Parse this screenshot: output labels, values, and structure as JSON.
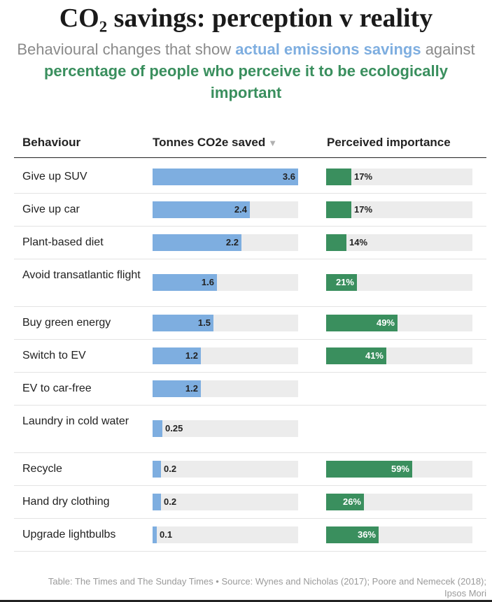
{
  "title": "CO₂ savings: perception v reality",
  "subtitle": {
    "part1": "Behavioural changes that show ",
    "highlight_blue": "actual emissions savings",
    "part2": " against",
    "highlight_green": "percentage of people who perceive it to be ecologically important"
  },
  "colors": {
    "blue": "#7eaee0",
    "green": "#3a8f5e",
    "track": "#ececec"
  },
  "headers": {
    "behaviour": "Behaviour",
    "tonnes": "Tonnes CO2e saved",
    "sort_icon": "▼",
    "perceived": "Perceived importance"
  },
  "footer": "Table: The Times and The Sunday Times • Source: Wynes and Nicholas (2017); Poore and Nemecek (2018); Ipsos Mori",
  "chart_data": {
    "type": "table",
    "title": "CO₂ savings: perception v reality",
    "columns": [
      "Behaviour",
      "Tonnes CO2e saved",
      "Perceived importance"
    ],
    "tonnes_range": [
      0,
      3.6
    ],
    "percent_range": [
      0,
      100
    ],
    "rows": [
      {
        "behaviour": "Give up SUV",
        "tonnes": 3.6,
        "tonnes_label": "3.6",
        "percent": 17,
        "percent_label": "17%"
      },
      {
        "behaviour": "Give up car",
        "tonnes": 2.4,
        "tonnes_label": "2.4",
        "percent": 17,
        "percent_label": "17%"
      },
      {
        "behaviour": "Plant-based diet",
        "tonnes": 2.2,
        "tonnes_label": "2.2",
        "percent": 14,
        "percent_label": "14%"
      },
      {
        "behaviour": "Avoid transatlantic flight",
        "tonnes": 1.6,
        "tonnes_label": "1.6",
        "percent": 21,
        "percent_label": "21%"
      },
      {
        "behaviour": "Buy green energy",
        "tonnes": 1.5,
        "tonnes_label": "1.5",
        "percent": 49,
        "percent_label": "49%"
      },
      {
        "behaviour": "Switch to EV",
        "tonnes": 1.2,
        "tonnes_label": "1.2",
        "percent": 41,
        "percent_label": "41%"
      },
      {
        "behaviour": "EV to car-free",
        "tonnes": 1.2,
        "tonnes_label": "1.2",
        "percent": null,
        "percent_label": null
      },
      {
        "behaviour": "Laundry in cold water",
        "tonnes": 0.25,
        "tonnes_label": "0.25",
        "percent": null,
        "percent_label": null
      },
      {
        "behaviour": "Recycle",
        "tonnes": 0.2,
        "tonnes_label": "0.2",
        "percent": 59,
        "percent_label": "59%"
      },
      {
        "behaviour": "Hand dry clothing",
        "tonnes": 0.2,
        "tonnes_label": "0.2",
        "percent": 26,
        "percent_label": "26%"
      },
      {
        "behaviour": "Upgrade lightbulbs",
        "tonnes": 0.1,
        "tonnes_label": "0.1",
        "percent": 36,
        "percent_label": "36%"
      }
    ]
  }
}
